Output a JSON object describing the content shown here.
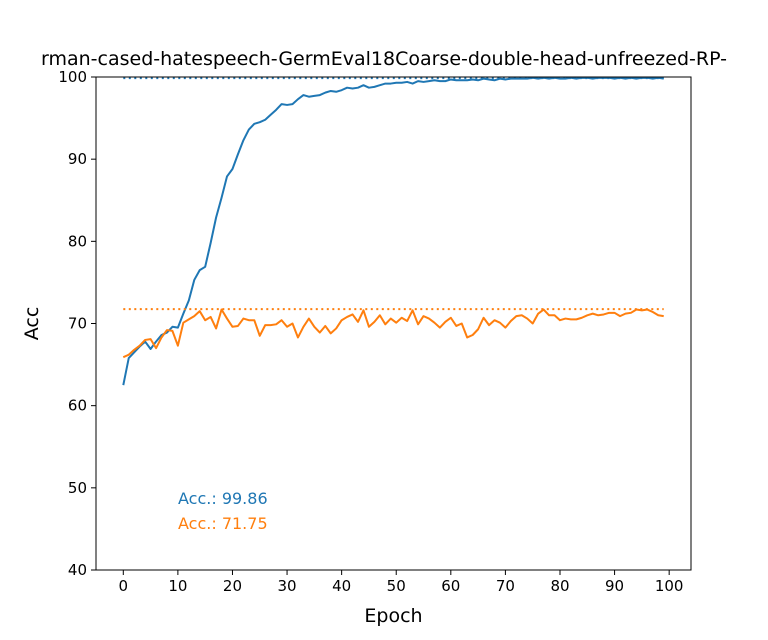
{
  "chart_data": {
    "type": "line",
    "title": "rman-cased-hatespeech-GermEval18Coarse-double-head-unfreezed-RP-",
    "xlabel": "Epoch",
    "ylabel": "Acc",
    "xlim": [
      -5,
      104
    ],
    "ylim": [
      40,
      100
    ],
    "xticks": [
      0,
      10,
      20,
      30,
      40,
      50,
      60,
      70,
      80,
      90,
      100
    ],
    "yticks": [
      40,
      50,
      60,
      70,
      80,
      90,
      100
    ],
    "grid": false,
    "series": [
      {
        "color": "#1f77b4",
        "best": 99.86,
        "values": [
          62.5,
          65.8,
          66.5,
          67.2,
          67.8,
          66.9,
          67.8,
          68.6,
          68.9,
          69.6,
          69.5,
          71.2,
          72.8,
          75.3,
          76.5,
          76.9,
          79.8,
          82.9,
          85.3,
          87.9,
          88.8,
          90.6,
          92.3,
          93.6,
          94.3,
          94.5,
          94.8,
          95.4,
          96.0,
          96.7,
          96.6,
          96.7,
          97.3,
          97.8,
          97.6,
          97.7,
          97.8,
          98.1,
          98.3,
          98.2,
          98.4,
          98.7,
          98.6,
          98.7,
          99.0,
          98.7,
          98.8,
          99.0,
          99.2,
          99.2,
          99.3,
          99.3,
          99.4,
          99.2,
          99.5,
          99.4,
          99.5,
          99.6,
          99.5,
          99.5,
          99.7,
          99.6,
          99.6,
          99.6,
          99.7,
          99.6,
          99.8,
          99.7,
          99.6,
          99.8,
          99.7,
          99.8,
          99.8,
          99.8,
          99.8,
          99.9,
          99.8,
          99.9,
          99.8,
          99.9,
          99.8,
          99.8,
          99.9,
          99.8,
          99.9,
          99.9,
          99.8,
          99.9,
          99.9,
          99.9,
          99.8,
          99.9,
          99.8,
          99.9,
          99.8,
          99.9,
          99.9,
          99.8,
          99.9,
          99.8
        ]
      },
      {
        "color": "#ff7f0e",
        "best": 71.75,
        "values": [
          65.9,
          66.2,
          66.8,
          67.3,
          68.0,
          68.1,
          67.0,
          68.3,
          69.2,
          69.1,
          67.3,
          70.1,
          70.5,
          70.9,
          71.5,
          70.4,
          70.8,
          69.4,
          71.7,
          70.6,
          69.6,
          69.7,
          70.6,
          70.4,
          70.4,
          68.5,
          69.8,
          69.8,
          69.9,
          70.4,
          69.6,
          70.0,
          68.3,
          69.6,
          70.6,
          69.6,
          68.9,
          69.7,
          68.8,
          69.4,
          70.4,
          70.8,
          71.1,
          70.2,
          71.6,
          69.6,
          70.2,
          71.0,
          69.9,
          70.6,
          70.1,
          70.7,
          70.3,
          71.6,
          69.9,
          70.9,
          70.6,
          70.1,
          69.5,
          70.2,
          70.7,
          69.7,
          70.0,
          68.3,
          68.6,
          69.3,
          70.7,
          69.8,
          70.4,
          70.1,
          69.5,
          70.3,
          70.9,
          71.0,
          70.6,
          70.0,
          71.2,
          71.7,
          71.0,
          71.0,
          70.4,
          70.6,
          70.5,
          70.5,
          70.7,
          71.0,
          71.2,
          71.0,
          71.1,
          71.3,
          71.3,
          70.9,
          71.2,
          71.3,
          71.7,
          71.6,
          71.7,
          71.4,
          71.0,
          70.9
        ]
      }
    ],
    "annotations": [
      {
        "text": "Acc.: 99.86",
        "color": "#1f77b4"
      },
      {
        "text": "Acc.: 71.75",
        "color": "#ff7f0e"
      }
    ]
  }
}
